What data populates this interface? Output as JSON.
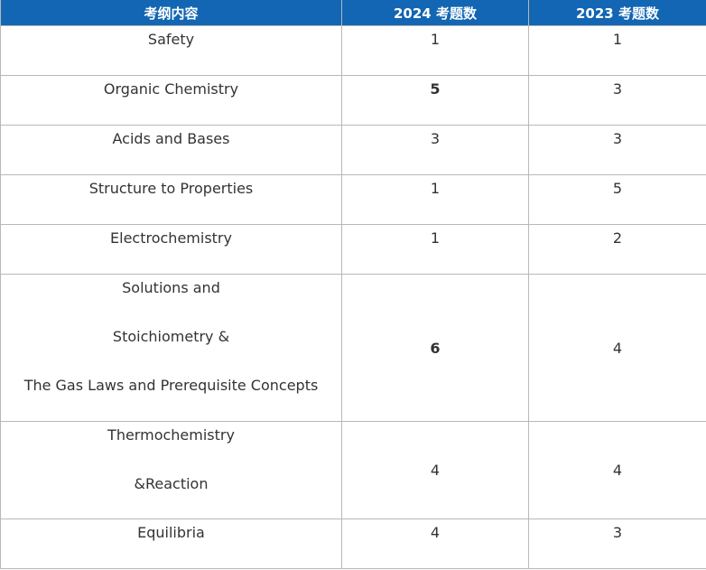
{
  "table": {
    "headers": [
      "考纲内容",
      "2024 考题数",
      "2023 考题数"
    ],
    "rows": [
      {
        "topic": [
          "Safety"
        ],
        "y2024": "1",
        "y2023": "1"
      },
      {
        "topic": [
          "Organic Chemistry"
        ],
        "y2024": "5",
        "y2023": "3",
        "bold2024": true
      },
      {
        "topic": [
          "Acids and Bases"
        ],
        "y2024": "3",
        "y2023": "3"
      },
      {
        "topic": [
          "Structure to Properties"
        ],
        "y2024": "1",
        "y2023": "5"
      },
      {
        "topic": [
          "Electrochemistry"
        ],
        "y2024": "1",
        "y2023": "2"
      },
      {
        "topic": [
          "Solutions and",
          "Stoichiometry &",
          "The Gas Laws and Prerequisite Concepts"
        ],
        "y2024": "6",
        "y2023": "4",
        "bold2024": true
      },
      {
        "topic": [
          "Thermochemistry",
          "&Reaction"
        ],
        "y2024": "4",
        "y2023": "4"
      },
      {
        "topic": [
          "Equilibria"
        ],
        "y2024": "4",
        "y2023": "3"
      }
    ]
  },
  "colors": {
    "header_bg": "#1266b3",
    "header_text": "#ffffff",
    "border": "#b8b8b8",
    "text": "#333333"
  }
}
